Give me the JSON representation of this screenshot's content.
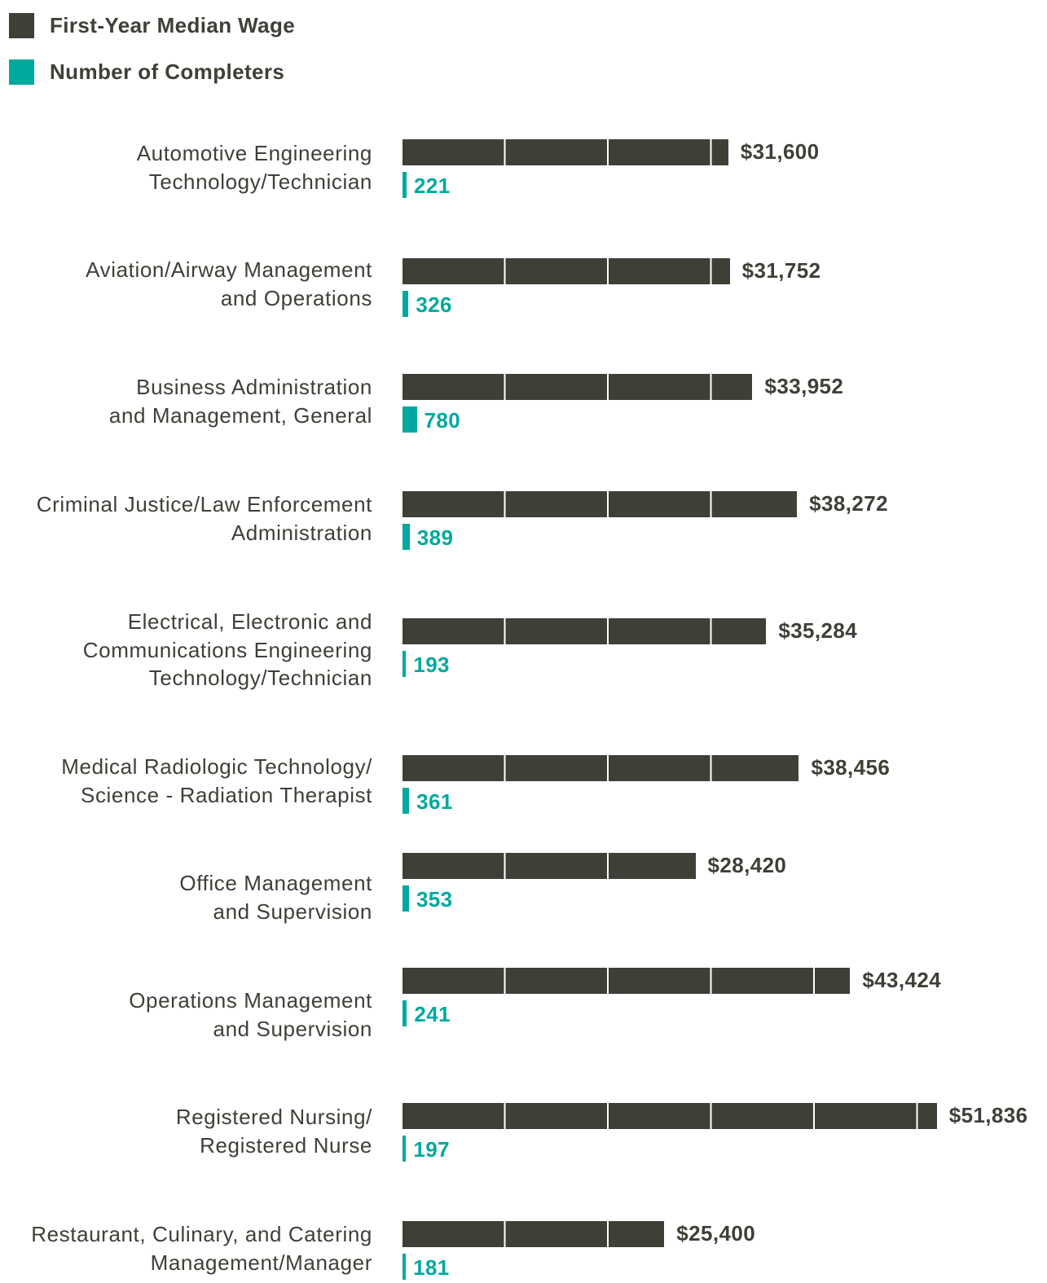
{
  "chart_data": {
    "type": "bar",
    "orientation": "horizontal",
    "categories": [
      "Automotive Engineering\nTechnology/Technician",
      "Aviation/Airway Management\nand Operations",
      "Business Administration\nand Management, General",
      "Criminal Justice/Law Enforcement\nAdministration",
      "Electrical, Electronic and\nCommunications Engineering\nTechnology/Technician",
      "Medical Radiologic Technology/\nScience - Radiation Therapist",
      "Office Management\nand Supervision",
      "Operations Management\nand Supervision",
      "Registered Nursing/\nRegistered Nurse",
      "Restaurant, Culinary, and Catering\nManagement/Manager"
    ],
    "series": [
      {
        "name": "First-Year Median Wage",
        "color": "#3d4037",
        "values": [
          31600,
          31752,
          33952,
          38272,
          35284,
          38456,
          28420,
          43424,
          51836,
          25400
        ],
        "value_labels": [
          "$31,600",
          "$31,752",
          "$33,952",
          "$38,272",
          "$35,284",
          "$38,456",
          "$28,420",
          "$43,424",
          "$51,836",
          "$25,400"
        ]
      },
      {
        "name": "Number of Completers",
        "color": "#00a99d",
        "values": [
          221,
          326,
          780,
          389,
          193,
          361,
          353,
          241,
          197,
          181
        ]
      }
    ]
  }
}
